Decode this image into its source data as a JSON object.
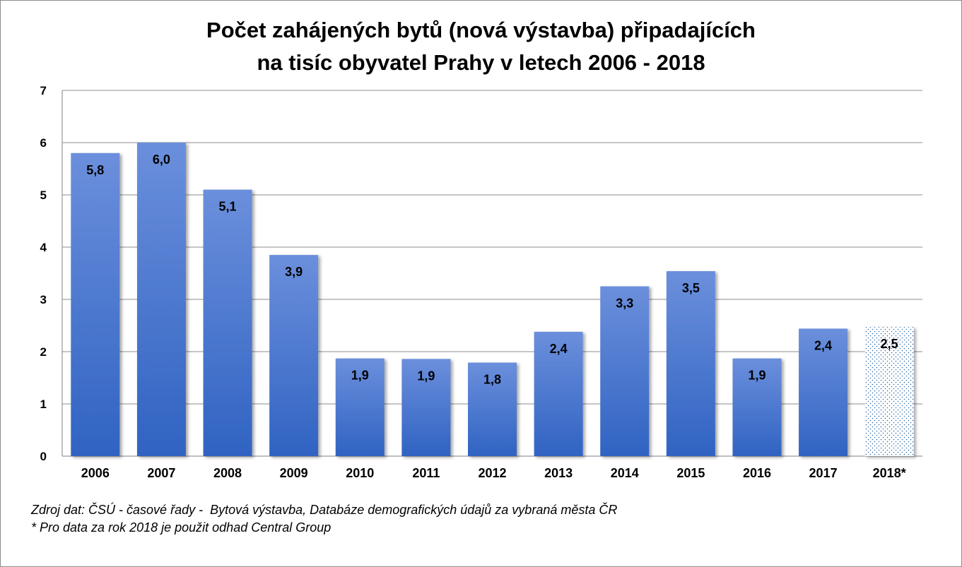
{
  "chart": {
    "title_lines": [
      "Počet zahájených bytů (nová výstavba) připadajících",
      "na tisíc obyvatel Prahy v letech 2006 - 2018"
    ]
  },
  "chart_data": {
    "type": "bar",
    "title": "Počet zahájených bytů (nová výstavba) připadajících na tisíc obyvatel Prahy v letech 2006 - 2018",
    "xlabel": "",
    "ylabel": "",
    "categories": [
      "2006",
      "2007",
      "2008",
      "2009",
      "2010",
      "2011",
      "2012",
      "2013",
      "2014",
      "2015",
      "2016",
      "2017",
      "2018*"
    ],
    "values": [
      5.8,
      6.0,
      5.1,
      3.85,
      1.87,
      1.86,
      1.79,
      2.38,
      3.25,
      3.54,
      1.87,
      2.44,
      2.47
    ],
    "data_labels": [
      "5,8",
      "6,0",
      "5,1",
      "3,9",
      "1,9",
      "1,9",
      "1,8",
      "2,4",
      "3,3",
      "3,5",
      "1,9",
      "2,4",
      "2,5"
    ],
    "estimated_categories": [
      "2018*"
    ],
    "ylim": [
      0,
      7
    ],
    "yticks": [
      "0",
      "1",
      "2",
      "3",
      "4",
      "5",
      "6",
      "7"
    ],
    "grid": true,
    "legend": "none",
    "colors": {
      "bar_top": "#6b8fdc",
      "bar_bottom": "#3063c2",
      "estimate_fill": "#ffffff",
      "estimate_dots": "#2b6aa8",
      "grid": "#8c8c8c",
      "axis": "#808080"
    }
  },
  "notes": {
    "source": "Zdroj dat: ČSÚ - časové řady -  Bytová výstavba, Databáze demografických údajů za vybraná města ČR",
    "footnote": "* Pro data za rok 2018 je použit odhad Central Group"
  }
}
